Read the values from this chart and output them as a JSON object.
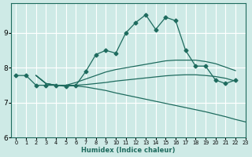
{
  "xlabel": "Humidex (Indice chaleur)",
  "background_color": "#ceeae6",
  "grid_color": "#ffffff",
  "line_color": "#1e6b5e",
  "xlim": [
    -0.5,
    23
  ],
  "ylim": [
    6.0,
    9.85
  ],
  "yticks": [
    6,
    7,
    8,
    9
  ],
  "xticks": [
    0,
    1,
    2,
    3,
    4,
    5,
    6,
    7,
    8,
    9,
    10,
    11,
    12,
    13,
    14,
    15,
    16,
    17,
    18,
    19,
    20,
    21,
    22,
    23
  ],
  "series": [
    {
      "x": [
        0,
        1,
        2,
        3,
        4,
        5,
        6,
        7,
        8,
        9,
        10,
        11,
        12,
        13,
        14,
        15,
        16,
        17,
        18,
        19,
        20,
        21,
        22
      ],
      "y": [
        7.78,
        7.78,
        7.5,
        7.5,
        7.5,
        7.47,
        7.5,
        7.9,
        8.38,
        8.5,
        8.42,
        9.0,
        9.3,
        9.52,
        9.1,
        9.45,
        9.35,
        8.5,
        8.05,
        8.05,
        7.65,
        7.55,
        7.65
      ],
      "marker": "D",
      "markersize": 2.5,
      "linewidth": 0.9
    },
    {
      "x": [
        2,
        3,
        4,
        5,
        6,
        7,
        8,
        9,
        10,
        11,
        12,
        13,
        14,
        15,
        16,
        17,
        18,
        19,
        20,
        21,
        22
      ],
      "y": [
        7.78,
        7.55,
        7.5,
        7.5,
        7.58,
        7.68,
        7.78,
        7.88,
        7.95,
        8.0,
        8.05,
        8.1,
        8.15,
        8.2,
        8.22,
        8.22,
        8.22,
        8.18,
        8.12,
        8.02,
        7.92
      ],
      "marker": null,
      "markersize": 0,
      "linewidth": 0.9
    },
    {
      "x": [
        2,
        3,
        4,
        5,
        6,
        7,
        8,
        9,
        10,
        11,
        12,
        13,
        14,
        15,
        16,
        17,
        18,
        19,
        20,
        21,
        22
      ],
      "y": [
        7.78,
        7.55,
        7.5,
        7.5,
        7.5,
        7.52,
        7.55,
        7.58,
        7.62,
        7.65,
        7.68,
        7.71,
        7.74,
        7.77,
        7.79,
        7.8,
        7.8,
        7.78,
        7.75,
        7.7,
        7.62
      ],
      "marker": null,
      "markersize": 0,
      "linewidth": 0.9
    },
    {
      "x": [
        2,
        3,
        4,
        5,
        6,
        7,
        8,
        9,
        10,
        11,
        12,
        13,
        14,
        15,
        16,
        17,
        18,
        19,
        20,
        21,
        22,
        23
      ],
      "y": [
        7.78,
        7.55,
        7.5,
        7.5,
        7.48,
        7.45,
        7.4,
        7.35,
        7.28,
        7.22,
        7.16,
        7.1,
        7.04,
        6.98,
        6.92,
        6.86,
        6.8,
        6.74,
        6.67,
        6.6,
        6.52,
        6.45
      ],
      "marker": null,
      "markersize": 0,
      "linewidth": 0.9
    }
  ]
}
